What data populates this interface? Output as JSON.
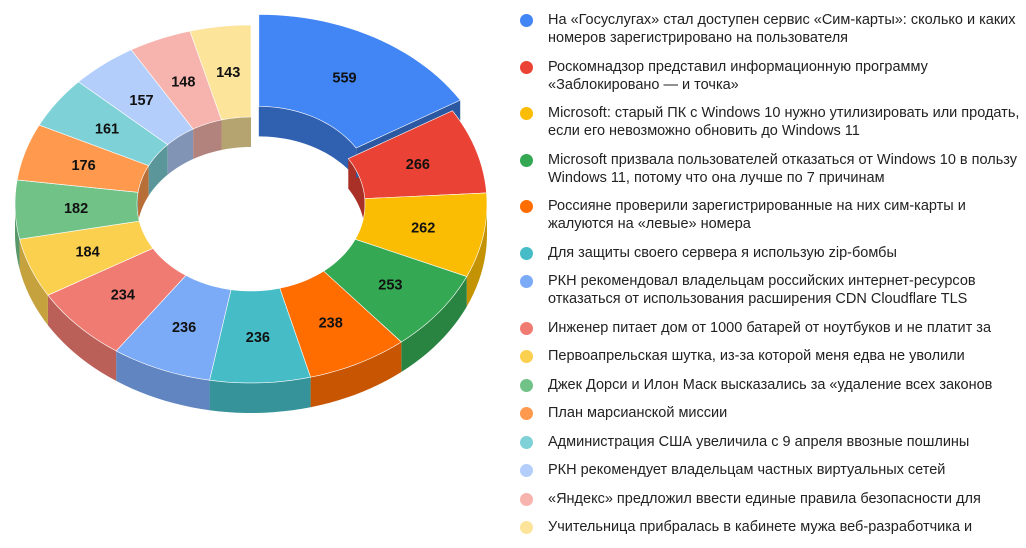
{
  "chart_data": {
    "type": "pie",
    "variant": "3d-donut",
    "title": "",
    "series": [
      {
        "label": "На «Госуслугах» стал доступен сервис «Сим-карты»: сколько и каких номеров зарегистрировано на пользователя",
        "value": 559,
        "color": "#4285f4"
      },
      {
        "label": "Роскомнадзор представил информационную программу «Заблокировано — и точка»",
        "value": 266,
        "color": "#ea4335"
      },
      {
        "label": "Microsoft: старый ПК с Windows 10 нужно утилизировать или продать, если его невозможно обновить до Windows 11",
        "value": 262,
        "color": "#fbbc04"
      },
      {
        "label": "Microsoft призвала пользователей отказаться от Windows 10 в пользу Windows 11, потому что она лучше по 7 причинам",
        "value": 253,
        "color": "#34a853"
      },
      {
        "label": "Россияне проверили зарегистрированные на них сим-карты и жалуются на «левые» номера",
        "value": 238,
        "color": "#ff6d01"
      },
      {
        "label": "Для защиты своего сервера я использую zip-бомбы",
        "value": 236,
        "color": "#46bdc6"
      },
      {
        "label": "РКН рекомендовал владельцам российских интернет-ресурсов отказаться от использования расширения CDN Cloudflare TLS",
        "value": 236,
        "color": "#7baaf7"
      },
      {
        "label": "Инженер питает дом от 1000 батарей от ноутбуков и не платит за",
        "value": 234,
        "color": "#f07b72"
      },
      {
        "label": "Первоапрельская шутка, из-за которой меня едва не уволили",
        "value": 184,
        "color": "#fcd04f"
      },
      {
        "label": "Джек Дорси и Илон Маск высказались за «удаление всех законов",
        "value": 182,
        "color": "#71c287"
      },
      {
        "label": "План марсианской миссии",
        "value": 176,
        "color": "#ff994d"
      },
      {
        "label": "Администрация США увеличила с 9 апреля ввозные пошлины",
        "value": 161,
        "color": "#7ed1d7"
      },
      {
        "label": "РКН рекомендует владельцам частных виртуальных сетей",
        "value": 157,
        "color": "#b3cefb"
      },
      {
        "label": "«Яндекс» предложил ввести единые правила безопасности для",
        "value": 148,
        "color": "#f7b4ae"
      },
      {
        "label": "Учительница прибралась в кабинете мужа веб-разработчика и",
        "value": 143,
        "color": "#fde49b"
      }
    ],
    "legend_position": "right",
    "exploded_slice": 0
  }
}
